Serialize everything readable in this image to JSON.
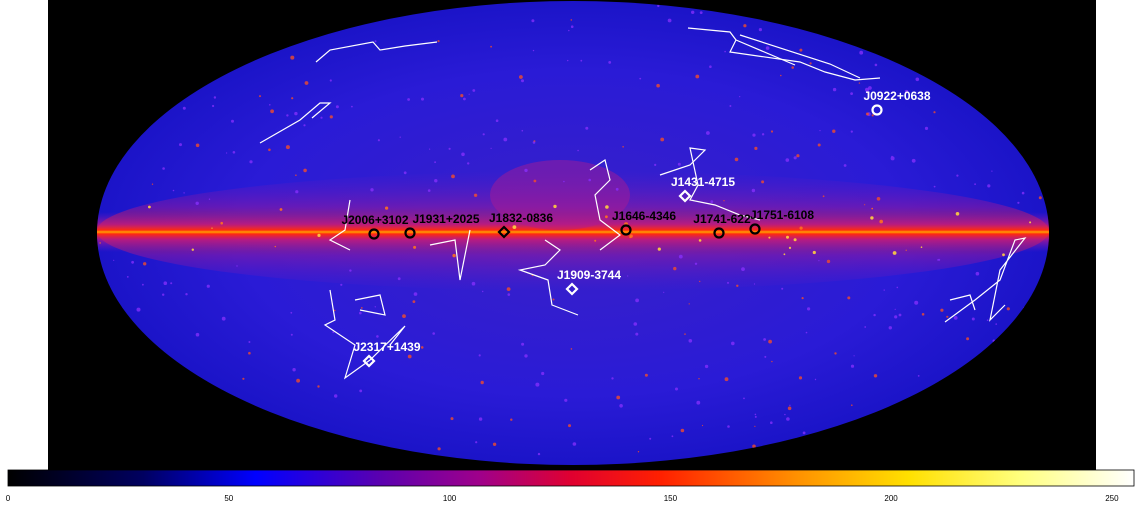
{
  "sources": [
    {
      "name": "J0922+0638",
      "marker": "circle",
      "label_color": "#ffffff",
      "marker_color": "#ffffff"
    },
    {
      "name": "J1431-4715",
      "marker": "diamond",
      "label_color": "#ffffff",
      "marker_color": "#ffffff"
    },
    {
      "name": "J1646-4346",
      "marker": "circle",
      "label_color": "#000000",
      "marker_color": "#000000"
    },
    {
      "name": "J1741-622",
      "marker": "circle",
      "label_color": "#000000",
      "marker_color": "#000000"
    },
    {
      "name": "J1751-6108",
      "marker": "circle",
      "label_color": "#000000",
      "marker_color": "#000000"
    },
    {
      "name": "J1832-0836",
      "marker": "diamond",
      "label_color": "#000000",
      "marker_color": "#000000"
    },
    {
      "name": "J1909-3744",
      "marker": "diamond",
      "label_color": "#ffffff",
      "marker_color": "#ffffff"
    },
    {
      "name": "J1931+2025",
      "marker": "circle",
      "label_color": "#000000",
      "marker_color": "#000000"
    },
    {
      "name": "J2006+3102",
      "marker": "circle",
      "label_color": "#000000",
      "marker_color": "#000000"
    },
    {
      "name": "J2317+1439",
      "marker": "diamond",
      "label_color": "#ffffff",
      "marker_color": "#ffffff"
    }
  ],
  "colorbar": {
    "ticks": [
      "0",
      "50",
      "100",
      "150",
      "200",
      "250"
    ],
    "range": [
      0,
      255
    ],
    "colormap": "heat: black-blue-purple-red-orange-yellow-white"
  },
  "colors": {
    "background": "#000000",
    "sky_base": "#2a1fd0",
    "galactic_plane": "#ff2a10",
    "constellation_lines": "#ffffff"
  }
}
